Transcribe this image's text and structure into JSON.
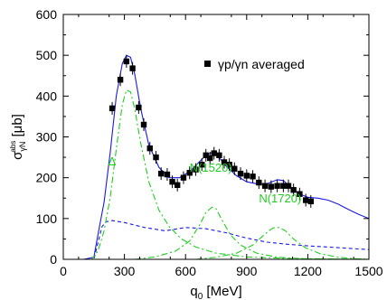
{
  "chart_data": {
    "type": "line",
    "title": "",
    "xlabel": "q₀ [MeV]",
    "ylabel": "σ_γN^abs [μb]",
    "xlim": [
      0,
      1500
    ],
    "ylim": [
      0,
      600
    ],
    "xticks": [
      0,
      300,
      600,
      900,
      1200,
      1500
    ],
    "yticks": [
      0,
      100,
      200,
      300,
      400,
      500,
      600
    ],
    "grid": false,
    "legend": {
      "position": "top-right",
      "entries": [
        "γp/γn averaged"
      ]
    },
    "series": [
      {
        "name": "γp/γn averaged",
        "style": "markers",
        "color": "#000000",
        "x": [
          240,
          280,
          310,
          340,
          370,
          395,
          425,
          455,
          480,
          510,
          535,
          560,
          590,
          620,
          650,
          680,
          700,
          720,
          740,
          765,
          790,
          815,
          840,
          870,
          900,
          930,
          960,
          990,
          1020,
          1050,
          1080,
          1105,
          1130,
          1160,
          1190,
          1215
        ],
        "y": [
          370,
          440,
          485,
          468,
          372,
          330,
          272,
          250,
          210,
          208,
          190,
          182,
          200,
          212,
          220,
          232,
          255,
          248,
          260,
          255,
          238,
          232,
          222,
          210,
          205,
          203,
          188,
          180,
          178,
          180,
          180,
          180,
          170,
          160,
          145,
          142
        ]
      },
      {
        "name": "",
        "style": "solid",
        "color": "#1a1ae0",
        "x": [
          0,
          100,
          150,
          170,
          200,
          230,
          260,
          290,
          310,
          330,
          350,
          380,
          420,
          470,
          520,
          570,
          620,
          660,
          700,
          730,
          760,
          800,
          850,
          900,
          950,
          1000,
          1050,
          1080,
          1120,
          1160,
          1200,
          1250,
          1300,
          1350,
          1400,
          1450,
          1500
        ],
        "y": [
          0,
          0,
          5,
          60,
          140,
          260,
          400,
          480,
          500,
          495,
          455,
          370,
          280,
          225,
          200,
          200,
          215,
          235,
          255,
          262,
          252,
          228,
          205,
          190,
          185,
          185,
          195,
          193,
          175,
          160,
          152,
          150,
          145,
          135,
          122,
          110,
          100
        ]
      },
      {
        "name": "",
        "style": "dashed",
        "color": "#1a1ae0",
        "x": [
          0,
          150,
          170,
          190,
          210,
          240,
          300,
          400,
          500,
          600,
          700,
          800,
          900,
          1000,
          1100,
          1200,
          1300,
          1400,
          1500
        ],
        "y": [
          0,
          0,
          40,
          80,
          92,
          95,
          90,
          78,
          70,
          78,
          75,
          65,
          52,
          42,
          37,
          33,
          30,
          27,
          24
        ]
      },
      {
        "name": "",
        "style": "dash-dot",
        "color": "#22cc22",
        "x": [
          0,
          140,
          170,
          200,
          230,
          260,
          290,
          310,
          330,
          350,
          380,
          420,
          470,
          520,
          580,
          650,
          750,
          900,
          1100,
          1500
        ],
        "y": [
          0,
          0,
          20,
          70,
          150,
          270,
          380,
          415,
          410,
          370,
          285,
          190,
          120,
          80,
          50,
          30,
          15,
          6,
          2,
          0
        ]
      },
      {
        "name": "",
        "style": "dash-dot",
        "color": "#22cc22",
        "x": [
          350,
          450,
          550,
          620,
          670,
          700,
          730,
          750,
          780,
          820,
          870,
          950,
          1050,
          1200,
          1500
        ],
        "y": [
          0,
          6,
          20,
          45,
          85,
          115,
          128,
          124,
          95,
          60,
          35,
          15,
          5,
          1,
          0
        ]
      },
      {
        "name": "",
        "style": "dash-dot",
        "color": "#22cc22",
        "x": [
          650,
          750,
          850,
          930,
          990,
          1030,
          1060,
          1090,
          1130,
          1190,
          1260,
          1350,
          1450,
          1500
        ],
        "y": [
          0,
          5,
          15,
          35,
          62,
          77,
          78,
          70,
          50,
          28,
          14,
          5,
          1,
          0
        ]
      }
    ],
    "annotations": [
      {
        "text": "Δ",
        "x": 220,
        "y": 230,
        "color": "#22cc22"
      },
      {
        "text": "N(1520)",
        "x": 620,
        "y": 215,
        "color": "#22cc22"
      },
      {
        "text": "N(1720)",
        "x": 960,
        "y": 140,
        "color": "#22cc22"
      }
    ]
  }
}
